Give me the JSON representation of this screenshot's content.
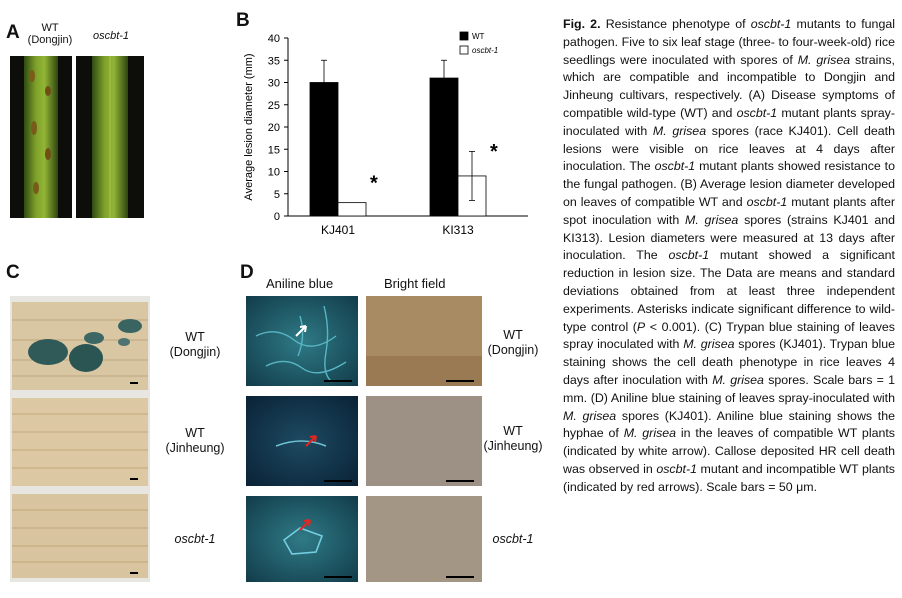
{
  "panels": {
    "a": {
      "label": "A",
      "wt_label_line1": "WT",
      "wt_label_line2": "(Dongjin)",
      "mutant_label": "oscbt-1"
    },
    "b": {
      "label": "B"
    },
    "c": {
      "label": "C",
      "rows": [
        {
          "line1": "WT",
          "line2": "(Dongjin)"
        },
        {
          "line1": "WT",
          "line2": "(Jinheung)"
        },
        {
          "line1": "oscbt-1",
          "line2": ""
        }
      ]
    },
    "d": {
      "label": "D",
      "col1": "Aniline blue",
      "col2": "Bright field",
      "rows": [
        {
          "line1": "WT",
          "line2": "(Dongjin)"
        },
        {
          "line1": "WT",
          "line2": "(Jinheung)"
        },
        {
          "line1": "oscbt-1",
          "line2": ""
        }
      ]
    }
  },
  "chart_data": {
    "type": "bar",
    "categories": [
      "KJ401",
      "KI313"
    ],
    "series": [
      {
        "name": "WT",
        "values": [
          30,
          31
        ],
        "errors": [
          5,
          4
        ],
        "color": "#000000"
      },
      {
        "name": "oscbt-1",
        "values": [
          3,
          9
        ],
        "errors": [
          0,
          5.5
        ],
        "color": "#ffffff"
      }
    ],
    "ylabel": "Average lesion diameter (mm)",
    "ylim": [
      0,
      40
    ],
    "yticks": [
      0,
      5,
      10,
      15,
      20,
      25,
      30,
      35,
      40
    ],
    "significance_marker": "*",
    "legend_position": "top-right"
  },
  "caption": {
    "fig": "Fig. 2.",
    "parts": [
      " Resistance phenotype of ",
      "oscbt-1",
      " mutants to fungal pathogen. Five to six leaf stage (three- to four-week-old) rice seedlings were inoculated with spores of ",
      "M. grisea",
      " strains, which are compatible and incompatible to Dongjin and Jinheung cultivars, respectively. (A) Disease symptoms of compatible wild-type (WT) and ",
      "oscbt-1",
      " mutant plants spray-inoculated with ",
      "M. grisea",
      " spores (race KJ401). Cell death lesions were visible on rice leaves at 4 days after inoculation. The ",
      "oscbt-1",
      " mutant plants showed resistance to the fungal pathogen. (B) Average lesion diameter developed on leaves of compatible WT and ",
      "oscbt-1",
      " mutant plants after spot inoculation with ",
      "M. grisea",
      " spores (strains KJ401 and KI313). Lesion diameters were measured at 13 days after inoculation. The ",
      "oscbt-1",
      " mutant showed a significant reduction in lesion size. The Data are means and standard deviations obtained from at least three independent experiments. Asterisks indicate significant difference to wild-type control (",
      "P",
      " < 0.001). (C) Trypan blue staining of leaves spray inoculated with ",
      "M. grisea",
      " spores (KJ401). Trypan blue staining shows the cell death phenotype in rice leaves 4 days after inoculation with ",
      "M. grisea",
      " spores. Scale bars = 1 mm. (D) Aniline blue staining of leaves spray-inoculated with ",
      "M. grisea",
      " spores (KJ401). Aniline blue staining shows the hyphae of ",
      "M. grisea",
      " in the leaves of compatible WT plants (indicated by white arrow). Callose deposited HR cell death was observed in ",
      "oscbt-1",
      " mutant and incompatible WT plants (indicated by red arrows). Scale bars = 50 μm."
    ]
  }
}
